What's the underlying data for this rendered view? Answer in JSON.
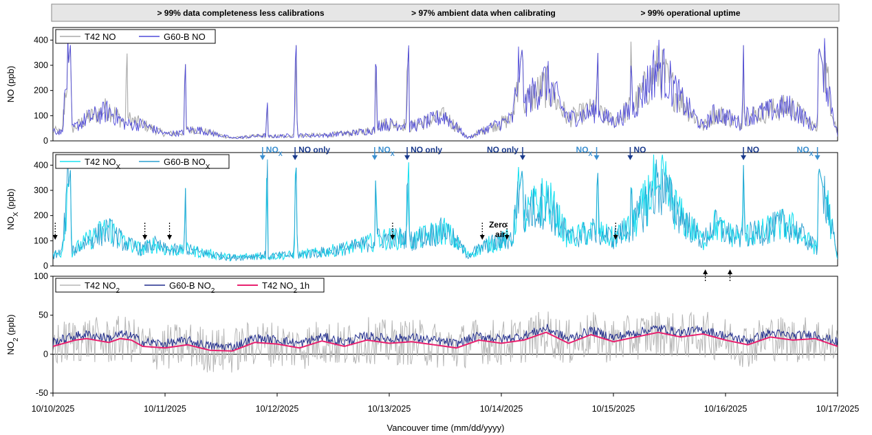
{
  "banner": {
    "items": [
      "> 99% data completeness less calibrations",
      "> 97% ambient data when calibrating",
      "> 99% operational uptime"
    ]
  },
  "colors": {
    "t42_no": "#a9a9a9",
    "g60b_no": "#4f4ad9",
    "t42_nox": "#19e0f0",
    "g60b_nox": "#2a9fcf",
    "t42_no2": "#b5b5b5",
    "g60b_no2": "#1e2a8c",
    "t42_no2_1h": "#e8206e",
    "annotation_nox": "#3a8fd0",
    "annotation_no": "#1a3a8c"
  },
  "chart_data": [
    {
      "type": "line",
      "panel": "NO",
      "ylabel": "NO (ppb)",
      "ylim": [
        0,
        450
      ],
      "yticks": [
        0,
        100,
        200,
        300,
        400
      ],
      "xlim": [
        "10/10/2025",
        "10/17/2025"
      ],
      "legend": [
        "T42 NO",
        "G60-B NO"
      ],
      "legend_position": "top-left",
      "series": [
        {
          "name": "T42 NO",
          "x_days": [
            0,
            0.08,
            0.155,
            0.16,
            0.165,
            0.3,
            0.5,
            0.65,
            0.66,
            0.67,
            0.8,
            1.0,
            1.17,
            1.18,
            1.19,
            1.3,
            1.6,
            1.9,
            1.91,
            1.92,
            2.15,
            2.17,
            2.18,
            2.4,
            2.7,
            2.87,
            2.88,
            2.89,
            3.15,
            3.17,
            3.18,
            3.5,
            3.7,
            3.9,
            4.1,
            4.19,
            4.2,
            4.21,
            4.4,
            4.6,
            4.85,
            4.86,
            4.87,
            5.0,
            5.15,
            5.16,
            5.17,
            5.4,
            5.6,
            5.8,
            5.9,
            6.0,
            6.15,
            6.16,
            6.17,
            6.3,
            6.5,
            6.6,
            6.82,
            6.83,
            7.0
          ],
          "values": [
            40,
            30,
            380,
            380,
            40,
            80,
            120,
            60,
            380,
            80,
            60,
            25,
            30,
            380,
            40,
            40,
            10,
            20,
            150,
            15,
            20,
            380,
            20,
            20,
            30,
            40,
            380,
            60,
            60,
            380,
            50,
            90,
            10,
            50,
            80,
            380,
            100,
            140,
            200,
            80,
            120,
            380,
            100,
            70,
            120,
            380,
            120,
            260,
            150,
            50,
            100,
            90,
            60,
            380,
            90,
            100,
            120,
            120,
            40,
            380,
            20
          ]
        },
        {
          "name": "G60-B NO",
          "x_days": [
            0,
            0.08,
            0.155,
            0.16,
            0.165,
            0.3,
            0.5,
            0.65,
            0.8,
            1.0,
            1.17,
            1.18,
            1.19,
            1.3,
            1.6,
            1.9,
            1.91,
            1.92,
            2.15,
            2.17,
            2.18,
            2.4,
            2.7,
            2.87,
            2.88,
            2.89,
            3.15,
            3.17,
            3.18,
            3.5,
            3.7,
            3.9,
            4.1,
            4.19,
            4.2,
            4.21,
            4.4,
            4.6,
            4.85,
            4.86,
            4.87,
            5.0,
            5.15,
            5.16,
            5.17,
            5.4,
            5.6,
            5.8,
            5.9,
            6.0,
            6.15,
            6.16,
            6.17,
            6.3,
            6.5,
            6.6,
            6.82,
            6.83,
            7.0
          ],
          "values": [
            40,
            30,
            380,
            380,
            40,
            80,
            110,
            60,
            60,
            25,
            30,
            380,
            40,
            40,
            10,
            20,
            150,
            15,
            20,
            380,
            20,
            20,
            30,
            40,
            380,
            60,
            60,
            380,
            50,
            90,
            10,
            50,
            80,
            380,
            100,
            140,
            220,
            80,
            110,
            380,
            100,
            70,
            110,
            380,
            110,
            280,
            150,
            50,
            100,
            90,
            60,
            380,
            90,
            100,
            120,
            120,
            40,
            380,
            20
          ]
        }
      ]
    },
    {
      "type": "line",
      "panel": "NOx",
      "ylabel": "NOX (ppb)",
      "ylim": [
        0,
        450
      ],
      "yticks": [
        0,
        100,
        200,
        300,
        400
      ],
      "xlim": [
        "10/10/2025",
        "10/17/2025"
      ],
      "legend": [
        "T42 NOX",
        "G60-B NOX"
      ],
      "legend_position": "top-left",
      "series": [
        {
          "name": "T42 NOX",
          "x_days": [
            0,
            0.08,
            0.155,
            0.16,
            0.165,
            0.3,
            0.5,
            0.65,
            0.8,
            0.9,
            1.0,
            1.17,
            1.18,
            1.19,
            1.3,
            1.6,
            1.9,
            1.91,
            1.92,
            2.15,
            2.17,
            2.18,
            2.4,
            2.7,
            2.87,
            2.88,
            2.89,
            3.15,
            3.17,
            3.18,
            3.5,
            3.7,
            3.9,
            4.1,
            4.19,
            4.2,
            4.21,
            4.4,
            4.6,
            4.85,
            4.86,
            4.87,
            5.0,
            5.15,
            5.16,
            5.17,
            5.4,
            5.6,
            5.8,
            5.9,
            6.0,
            6.15,
            6.16,
            6.17,
            6.3,
            6.5,
            6.6,
            6.82,
            6.83,
            7.0
          ],
          "values": [
            40,
            50,
            380,
            380,
            50,
            90,
            140,
            80,
            60,
            80,
            60,
            55,
            380,
            60,
            50,
            30,
            40,
            400,
            35,
            40,
            390,
            40,
            50,
            70,
            90,
            410,
            100,
            100,
            395,
            90,
            130,
            40,
            80,
            100,
            395,
            130,
            180,
            250,
            100,
            130,
            400,
            120,
            100,
            140,
            395,
            140,
            320,
            180,
            90,
            150,
            120,
            100,
            400,
            110,
            120,
            150,
            140,
            60,
            400,
            20
          ]
        },
        {
          "name": "G60-B NOX",
          "x_days": [
            0,
            0.08,
            0.155,
            0.16,
            0.165,
            0.3,
            0.5,
            0.65,
            0.8,
            0.9,
            1.0,
            1.17,
            1.18,
            1.19,
            1.3,
            1.6,
            1.9,
            1.91,
            1.92,
            2.15,
            2.17,
            2.18,
            2.4,
            2.7,
            2.87,
            2.88,
            2.89,
            3.15,
            3.17,
            3.18,
            3.5,
            3.7,
            3.9,
            4.1,
            4.19,
            4.2,
            4.21,
            4.4,
            4.6,
            4.85,
            4.86,
            4.87,
            5.0,
            5.15,
            5.16,
            5.17,
            5.4,
            5.6,
            5.8,
            5.9,
            6.0,
            6.15,
            6.16,
            6.17,
            6.3,
            6.5,
            6.6,
            6.82,
            6.83,
            7.0
          ],
          "values": [
            40,
            50,
            380,
            380,
            50,
            90,
            130,
            80,
            60,
            80,
            60,
            55,
            380,
            60,
            50,
            30,
            40,
            400,
            35,
            40,
            390,
            40,
            50,
            70,
            90,
            410,
            100,
            100,
            395,
            90,
            130,
            40,
            80,
            100,
            395,
            130,
            190,
            230,
            100,
            130,
            400,
            120,
            100,
            140,
            395,
            140,
            300,
            180,
            90,
            150,
            120,
            100,
            400,
            110,
            120,
            150,
            140,
            60,
            400,
            20
          ]
        }
      ],
      "annotations": [
        {
          "text": "NOX",
          "x_day": 1.87,
          "kind": "NOx"
        },
        {
          "text": "NO only",
          "x_day": 2.16,
          "kind": "NO"
        },
        {
          "text": "NOX",
          "x_day": 2.87,
          "kind": "NOx"
        },
        {
          "text": "NO only",
          "x_day": 3.16,
          "kind": "NO"
        },
        {
          "text": "NO only",
          "x_day": 4.19,
          "kind": "NO"
        },
        {
          "text": "NOX",
          "x_day": 4.85,
          "kind": "NOx"
        },
        {
          "text": "NO",
          "x_day": 5.15,
          "kind": "NO"
        },
        {
          "text": "NO",
          "x_day": 6.16,
          "kind": "NO"
        },
        {
          "text": "NOX",
          "x_day": 6.82,
          "kind": "NOx"
        }
      ],
      "zero_air_label": "Zero\nair"
    },
    {
      "type": "line",
      "panel": "NO2",
      "ylabel": "NO2 (ppb)",
      "ylim": [
        -50,
        100
      ],
      "yticks": [
        -50,
        0,
        50,
        100
      ],
      "xlim": [
        "10/10/2025",
        "10/17/2025"
      ],
      "legend": [
        "T42 NO2",
        "G60-B NO2",
        "T42 NO2 1h"
      ],
      "legend_position": "top-left",
      "series": [
        {
          "name": "T42 NO2 1h",
          "x_days": [
            0,
            0.2,
            0.3,
            0.5,
            0.6,
            0.7,
            0.8,
            1.0,
            1.2,
            1.4,
            1.6,
            1.8,
            2.0,
            2.2,
            2.4,
            2.6,
            2.8,
            3.0,
            3.2,
            3.4,
            3.6,
            3.8,
            4.0,
            4.2,
            4.4,
            4.6,
            4.8,
            5.0,
            5.2,
            5.4,
            5.6,
            5.8,
            6.0,
            6.2,
            6.4,
            6.6,
            6.8,
            7.0
          ],
          "values": [
            10,
            18,
            20,
            15,
            20,
            18,
            10,
            8,
            12,
            5,
            4,
            15,
            13,
            8,
            17,
            10,
            18,
            14,
            16,
            12,
            8,
            18,
            14,
            18,
            28,
            14,
            25,
            16,
            22,
            28,
            22,
            26,
            18,
            12,
            22,
            18,
            20,
            10
          ]
        }
      ],
      "other_series_names": [
        "T42 NO2",
        "G60-B NO2"
      ]
    }
  ],
  "x_axis": {
    "label": "Vancouver time (mm/dd/yyyy)",
    "ticks": [
      "10/10/2025",
      "10/11/2025",
      "10/12/2025",
      "10/13/2025",
      "10/14/2025",
      "10/15/2025",
      "10/16/2025",
      "10/17/2025"
    ]
  }
}
